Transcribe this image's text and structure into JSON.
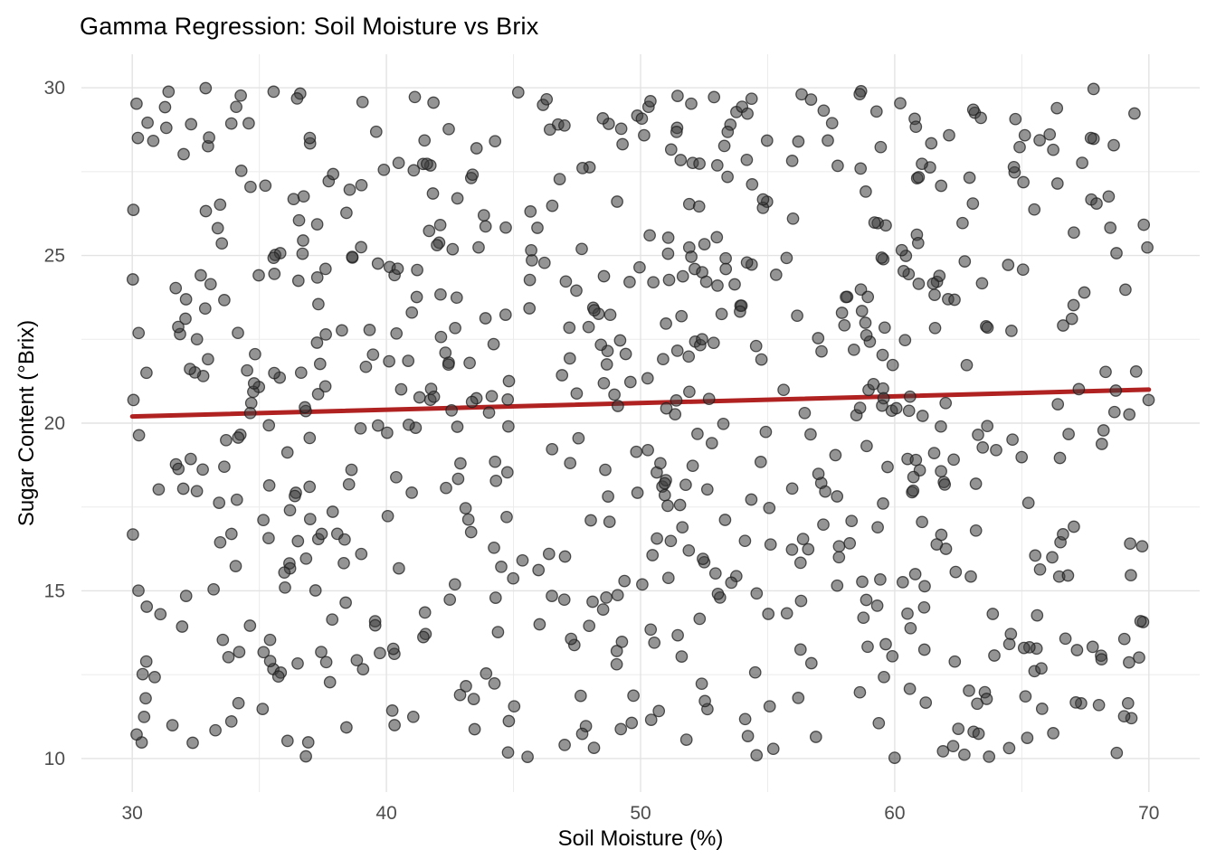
{
  "chart_data": {
    "type": "scatter",
    "title": "Gamma Regression: Soil Moisture vs Brix",
    "xlabel": "Soil Moisture (%)",
    "ylabel": "Sugar Content (°Brix)",
    "x_ticks": [
      30,
      40,
      50,
      60,
      70
    ],
    "y_ticks": [
      10,
      15,
      20,
      25,
      30
    ],
    "x_minor_ticks": [
      35,
      45,
      55,
      65
    ],
    "y_minor_ticks": [
      12.5,
      17.5,
      22.5,
      27.5
    ],
    "xlim": [
      28,
      72
    ],
    "ylim": [
      9,
      31
    ],
    "grid": "major-and-minor",
    "legend": "none",
    "scatter": {
      "n": 760,
      "distribution": "uniform",
      "x_range": [
        30,
        70
      ],
      "y_range": [
        10,
        30
      ],
      "seed": 7,
      "point_radius": 6.2,
      "point_fill": "#3c3c3c",
      "point_fill_opacity": 0.55,
      "point_stroke": "#1e1e1e",
      "point_stroke_opacity": 0.75
    },
    "regression_line": {
      "x": [
        30,
        70
      ],
      "y": [
        20.2,
        21.0
      ],
      "color": "#B02222",
      "width": 5
    },
    "colors": {
      "background": "#FFFFFF",
      "grid_major": "#E3E3E3",
      "grid_minor": "#EBEBEB",
      "tick_label": "#4D4D4D",
      "title": "#000000",
      "axis_title": "#000000"
    }
  }
}
